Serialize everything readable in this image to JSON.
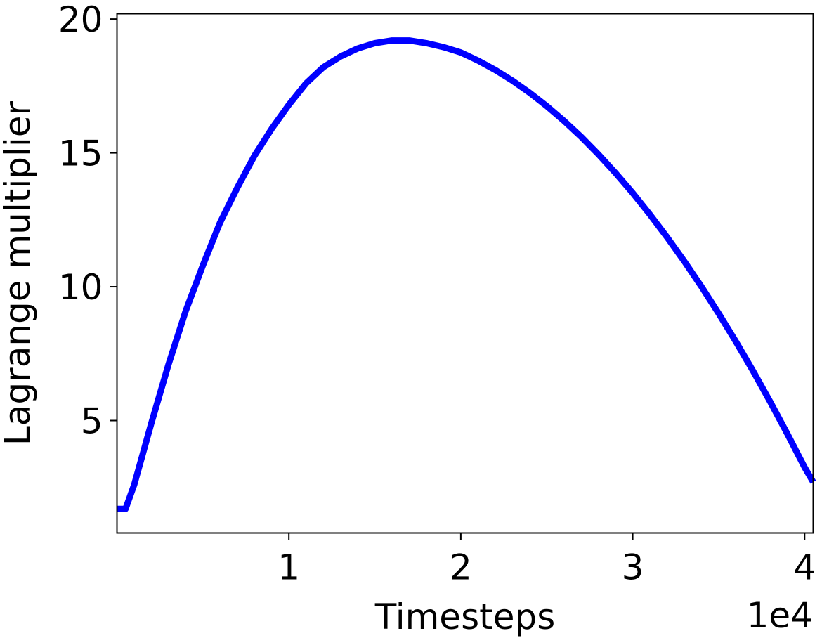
{
  "chart_data": {
    "type": "line",
    "title": "",
    "xlabel": "Timesteps",
    "ylabel": "Lagrange multiplier",
    "x_offset_label": "1e4",
    "xlim": [
      0,
      40500
    ],
    "ylim": [
      0.8,
      20.2
    ],
    "x_ticks": [
      {
        "value": 10000,
        "label": "1"
      },
      {
        "value": 20000,
        "label": "2"
      },
      {
        "value": 30000,
        "label": "3"
      },
      {
        "value": 40000,
        "label": "4"
      }
    ],
    "y_ticks": [
      {
        "value": 5,
        "label": "5"
      },
      {
        "value": 10,
        "label": "10"
      },
      {
        "value": 15,
        "label": "15"
      },
      {
        "value": 20,
        "label": "20"
      }
    ],
    "grid": false,
    "series": [
      {
        "color": "#0000ff",
        "x": [
          0,
          500,
          1000,
          2000,
          3000,
          4000,
          5000,
          6000,
          7000,
          8000,
          9000,
          10000,
          11000,
          12000,
          13000,
          14000,
          15000,
          16000,
          17000,
          18000,
          19000,
          20000,
          21000,
          22000,
          23000,
          24000,
          25000,
          26000,
          27000,
          28000,
          29000,
          30000,
          31000,
          32000,
          33000,
          34000,
          35000,
          36000,
          37000,
          38000,
          39000,
          40000,
          40500
        ],
        "y": [
          1.7,
          1.7,
          2.6,
          4.9,
          7.1,
          9.1,
          10.8,
          12.4,
          13.7,
          14.9,
          15.9,
          16.8,
          17.6,
          18.2,
          18.6,
          18.9,
          19.1,
          19.2,
          19.2,
          19.1,
          18.95,
          18.75,
          18.45,
          18.1,
          17.7,
          17.25,
          16.75,
          16.2,
          15.6,
          14.95,
          14.25,
          13.5,
          12.7,
          11.85,
          10.95,
          10.0,
          9.0,
          7.95,
          6.85,
          5.7,
          4.5,
          3.25,
          2.7
        ]
      }
    ]
  }
}
